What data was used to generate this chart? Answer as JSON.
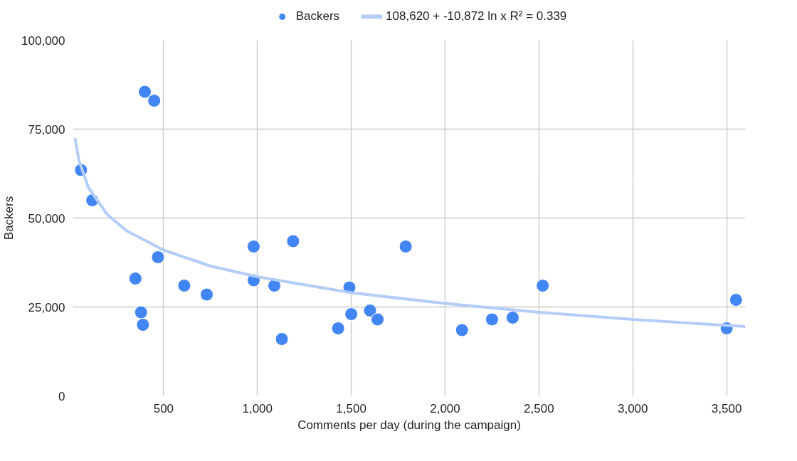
{
  "chart_data": {
    "type": "scatter",
    "xlabel": "Comments per day (during the campaign)",
    "ylabel": "Backers",
    "xlim": [
      17,
      3600
    ],
    "ylim": [
      0,
      100000
    ],
    "xticks": [
      500,
      {
        "value": 1000,
        "label": "1,000"
      },
      {
        "value": 1500,
        "label": "1,500"
      },
      {
        "value": 2000,
        "label": "2,000"
      },
      {
        "value": 2500,
        "label": "2,500"
      },
      {
        "value": 3000,
        "label": "3,000"
      },
      {
        "value": 3500,
        "label": "3,500"
      }
    ],
    "yticks": [
      0,
      {
        "value": 25000,
        "label": "25,000"
      },
      {
        "value": 50000,
        "label": "50,000"
      },
      {
        "value": 75000,
        "label": "75,000"
      },
      {
        "value": 100000,
        "label": "100,000"
      }
    ],
    "grid": true,
    "legend": "top",
    "marker": "circle",
    "series": [
      {
        "name": "Backers",
        "color": "#4285f4",
        "x": [
          60,
          120,
          400,
          450,
          470,
          350,
          380,
          390,
          610,
          730,
          980,
          980,
          1090,
          1190,
          1130,
          1430,
          1490,
          1500,
          1600,
          1640,
          1790,
          2090,
          2250,
          2360,
          2520,
          3500,
          3550
        ],
        "values": [
          63500,
          55000,
          85500,
          83000,
          39000,
          33000,
          23500,
          20000,
          31000,
          28500,
          42000,
          32500,
          31000,
          43500,
          16000,
          19000,
          30500,
          23000,
          24000,
          21500,
          42000,
          18500,
          21500,
          22000,
          31000,
          19000,
          27000
        ]
      },
      {
        "name": "108,620 + -10,872 ln x R² = 0.339",
        "type": "line",
        "color": "#b3cdf8",
        "line_style": "solid",
        "marker": "none",
        "x": [
          28,
          50,
          100,
          200,
          300,
          500,
          750,
          1000,
          1500,
          2000,
          2500,
          3000,
          3600
        ],
        "values": [
          72500,
          66000,
          58500,
          51000,
          46500,
          41000,
          36500,
          33500,
          29000,
          26000,
          23500,
          21500,
          19500
        ]
      }
    ]
  }
}
